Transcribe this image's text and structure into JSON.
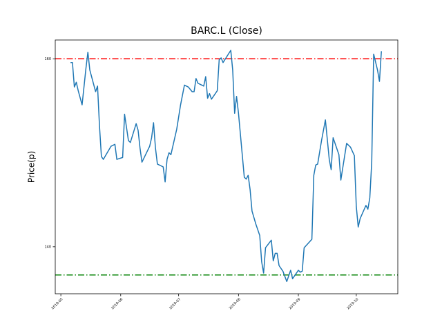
{
  "chart_data": {
    "type": "line",
    "title": "BARC.L (Close)",
    "y_label": "Price(p)",
    "x": [
      18022,
      18023,
      18024,
      18025,
      18026,
      18028,
      18030,
      18031,
      18032,
      18035,
      18036,
      18037,
      18038,
      18039,
      18043,
      18045,
      18046,
      18049,
      18050,
      18052,
      18053,
      18056,
      18057,
      18058,
      18059,
      18063,
      18064,
      18065,
      18066,
      18067,
      18070,
      18071,
      18072,
      18073,
      18074,
      18077,
      18079,
      18081,
      18083,
      18085,
      18086,
      18087,
      18088,
      18091,
      18092,
      18093,
      18094,
      18095,
      18098,
      18099,
      18100,
      18101,
      18105,
      18106,
      18107,
      18108,
      18109,
      18112,
      18113,
      18114,
      18115,
      18116,
      18118,
      18119,
      18120,
      18121,
      18122,
      18123,
      18126,
      18127,
      18128,
      18129,
      18130,
      18132,
      18134,
      18136,
      18137,
      18140,
      18141,
      18142,
      18143,
      18147,
      18148,
      18149,
      18150,
      18152,
      18154,
      18156,
      18157,
      18158,
      18161,
      18162,
      18165,
      18167,
      18169,
      18170,
      18171,
      18172,
      18175,
      18176,
      18177,
      18178,
      18179,
      18181,
      18182,
      18183
    ],
    "series": [
      {
        "name": "Close",
        "color": "#1f77b4",
        "values": [
          159.6,
          159.6,
          157.0,
          157.5,
          156.6,
          155.1,
          159.0,
          160.7,
          158.8,
          156.5,
          157.1,
          152.9,
          149.6,
          149.3,
          150.7,
          150.9,
          149.3,
          149.5,
          154.1,
          151.3,
          151.1,
          153.1,
          152.4,
          150.5,
          149.0,
          150.7,
          151.6,
          153.2,
          150.5,
          148.8,
          148.5,
          146.9,
          149.3,
          150.0,
          149.8,
          152.5,
          155.1,
          157.2,
          157.0,
          156.5,
          156.5,
          157.9,
          157.4,
          157.1,
          158.1,
          155.8,
          156.3,
          155.7,
          156.6,
          159.9,
          160.1,
          159.6,
          160.9,
          158.8,
          154.2,
          156.0,
          154.2,
          147.4,
          147.2,
          147.6,
          146.1,
          143.8,
          142.4,
          141.8,
          141.2,
          138.4,
          137.2,
          139.9,
          140.7,
          138.5,
          139.3,
          139.3,
          138.0,
          137.4,
          136.3,
          137.5,
          136.6,
          137.5,
          137.3,
          137.4,
          139.9,
          140.8,
          147.6,
          148.7,
          148.8,
          151.3,
          153.5,
          149.3,
          148.2,
          151.6,
          149.8,
          147.1,
          151.0,
          150.6,
          149.7,
          144.3,
          142.1,
          143.0,
          144.4,
          144.0,
          145.2,
          149.0,
          160.5,
          158.8,
          157.6,
          160.8
        ]
      }
    ],
    "hlines": [
      {
        "value": 160,
        "color": "#ff0000"
      },
      {
        "value": 137,
        "color": "#008000"
      }
    ],
    "xlim": [
      18014.1,
      18191.5
    ],
    "xticks": [
      {
        "value": 18017,
        "label": "2019-05"
      },
      {
        "value": 18048,
        "label": "2019-06"
      },
      {
        "value": 18078,
        "label": "2019-07"
      },
      {
        "value": 18109,
        "label": "2019-08"
      },
      {
        "value": 18140,
        "label": "2019-09"
      },
      {
        "value": 18170,
        "label": "2019-10"
      }
    ],
    "ylim": [
      135,
      162
    ],
    "yticks": [
      140,
      160
    ]
  }
}
